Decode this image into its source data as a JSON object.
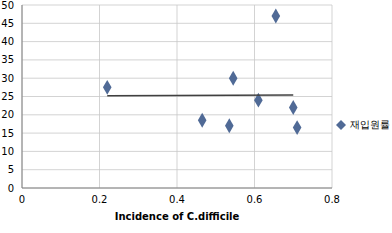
{
  "chart_data": {
    "type": "scatter",
    "x_label": "Incidence of C.difficile",
    "xlim": [
      0,
      0.8
    ],
    "xticks": [
      0,
      0.2,
      0.4,
      0.6,
      0.8
    ],
    "ylim": [
      0,
      50
    ],
    "yticks": [
      0,
      5,
      10,
      15,
      20,
      25,
      30,
      35,
      40,
      45,
      50
    ],
    "grid": true,
    "legend": "right",
    "series": [
      {
        "name": "재입원률",
        "type": "scatter",
        "marker": "diamond",
        "color": "#506a96",
        "x": [
          0.22,
          0.465,
          0.535,
          0.545,
          0.61,
          0.655,
          0.7,
          0.71
        ],
        "values": [
          27.5,
          18.5,
          17,
          30,
          24,
          47,
          22,
          16.5
        ]
      },
      {
        "type": "line",
        "line_style": "solid",
        "color": "#404040",
        "x": [
          0.22,
          0.7
        ],
        "values": [
          25.2,
          25.4
        ]
      }
    ]
  }
}
